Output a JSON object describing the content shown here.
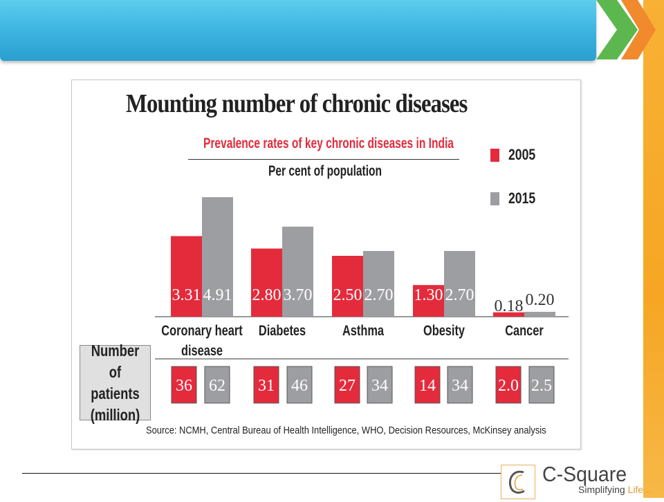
{
  "slide": {
    "accent_colors": {
      "banner": "#3fb7e2",
      "chevron_green": "#5cb84e",
      "chevron_orange": "#f08a2c",
      "side_bar": "#f6a623"
    }
  },
  "chart_data": {
    "type": "bar",
    "title": "Mounting number of chronic diseases",
    "subtitle": "Prevalence rates of key chronic diseases in India",
    "ylabel": "Per cent of population",
    "categories": [
      "Coronary heart disease",
      "Diabetes",
      "Asthma",
      "Obesity",
      "Cancer"
    ],
    "tick_labels": [
      "Coronary heart\ndisease",
      "Diabetes",
      "Asthma",
      "Obesity",
      "Cancer"
    ],
    "series": [
      {
        "name": "2005",
        "color": "#e42b3c",
        "values": [
          3.31,
          2.8,
          2.5,
          1.3,
          0.18
        ],
        "labels": [
          "3.31",
          "2.80",
          "2.50",
          "1.30",
          "0.18"
        ]
      },
      {
        "name": "2015",
        "color": "#9d9ea2",
        "values": [
          4.91,
          3.7,
          2.7,
          2.7,
          0.2
        ],
        "labels": [
          "4.91",
          "3.70",
          "2.70",
          "2.70",
          "0.20"
        ]
      }
    ],
    "legend_placement": "top-right",
    "grid": false,
    "patients": {
      "label": "Number of\npatients\n(million)",
      "series": [
        {
          "name": "2005",
          "values": [
            "36",
            "31",
            "27",
            "14",
            "2.0"
          ]
        },
        {
          "name": "2015",
          "values": [
            "62",
            "46",
            "34",
            "34",
            "2.5"
          ]
        }
      ]
    },
    "source": "Source: NCMH, Central Bureau of Health Intelligence, WHO, Decision Resources, McKinsey analysis"
  },
  "logo": {
    "name": "C-Square",
    "tagline_prefix": "Simplifying ",
    "tagline_highlight": "Life..."
  }
}
